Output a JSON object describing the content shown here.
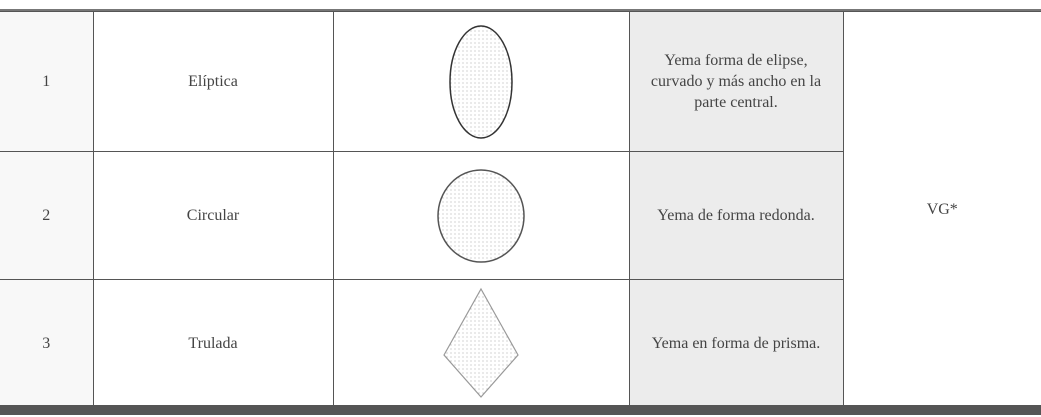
{
  "table": {
    "rows": [
      [
        "1",
        "Elíptica",
        "Yema forma de elipse, curvado y más ancho en la parte central."
      ],
      [
        "2",
        "Circular",
        "Yema de forma redonda."
      ],
      [
        "3",
        "Trulada",
        "Yema en forma de prisma."
      ]
    ],
    "group_label": "VG*"
  }
}
